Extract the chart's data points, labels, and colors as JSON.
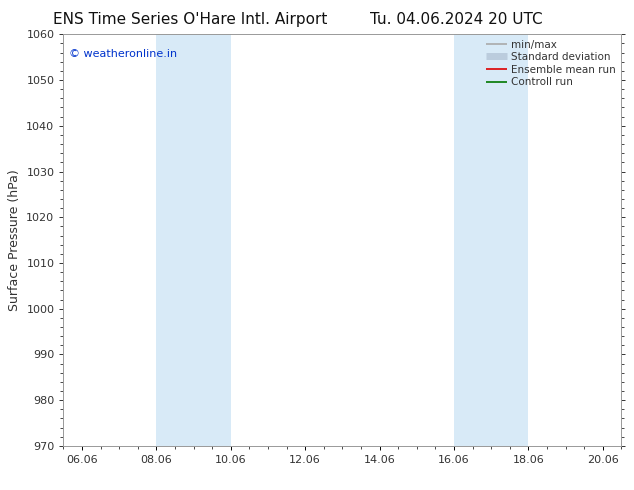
{
  "title_left": "ENS Time Series O'Hare Intl. Airport",
  "title_right": "Tu. 04.06.2024 20 UTC",
  "ylabel": "Surface Pressure (hPa)",
  "ylim": [
    970,
    1060
  ],
  "yticks": [
    970,
    980,
    990,
    1000,
    1010,
    1020,
    1030,
    1040,
    1050,
    1060
  ],
  "xtick_labels": [
    "06.06",
    "08.06",
    "10.06",
    "12.06",
    "14.06",
    "16.06",
    "18.06",
    "20.06"
  ],
  "xtick_positions": [
    0,
    2,
    4,
    6,
    8,
    10,
    12,
    14
  ],
  "xlim": [
    -0.5,
    14.5
  ],
  "shaded_regions": [
    {
      "xmin": 2,
      "xmax": 4,
      "color": "#d8eaf7"
    },
    {
      "xmin": 10,
      "xmax": 12,
      "color": "#d8eaf7"
    }
  ],
  "watermark_text": "© weatheronline.in",
  "watermark_color": "#0033cc",
  "legend_items": [
    {
      "label": "min/max",
      "color": "#aaaaaa",
      "lw": 1.2
    },
    {
      "label": "Standard deviation",
      "color": "#bbccdd",
      "lw": 5
    },
    {
      "label": "Ensemble mean run",
      "color": "#dd0000",
      "lw": 1.2
    },
    {
      "label": "Controll run",
      "color": "#007700",
      "lw": 1.2
    }
  ],
  "bg_color": "#ffffff",
  "spine_color": "#999999",
  "tick_color": "#333333",
  "title_fontsize": 11,
  "tick_fontsize": 8,
  "ylabel_fontsize": 9,
  "watermark_fontsize": 8,
  "legend_fontsize": 7.5
}
